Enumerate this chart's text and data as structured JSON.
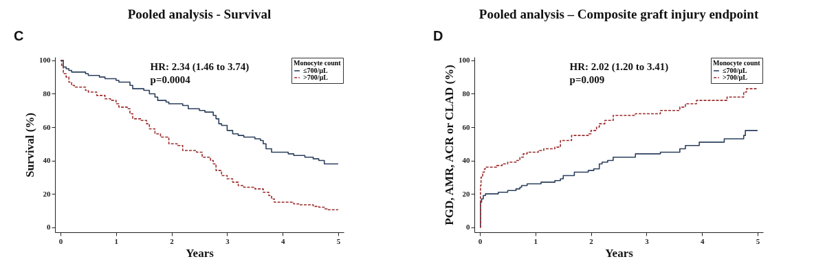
{
  "chart_data": [
    {
      "type": "step",
      "title": "Pooled analysis - Survival",
      "xlabel": "Years",
      "ylabel": "Survival (%)",
      "legend_title": "Monocyte count",
      "legend": "top right",
      "grid": false,
      "annotations": [
        "C",
        "HR: 2.34 (1.46 to 3.74)",
        "p=0.0004"
      ],
      "xlim": [
        -0.1,
        5.1
      ],
      "xticks": [
        0,
        1,
        2,
        3,
        4,
        5
      ],
      "ylim": [
        -3,
        102
      ],
      "yticks": [
        0,
        20,
        40,
        60,
        80,
        100
      ],
      "series": [
        {
          "name": "≤700/µL",
          "color": "#2b3f5c",
          "line_style": "solid",
          "x": [
            0,
            0.05,
            0.1,
            0.15,
            0.2,
            0.45,
            0.5,
            0.7,
            0.8,
            1.0,
            1.05,
            1.25,
            1.3,
            1.5,
            1.6,
            1.7,
            1.75,
            1.9,
            1.95,
            2.2,
            2.3,
            2.5,
            2.6,
            2.75,
            2.8,
            2.85,
            2.9,
            3.0,
            3.1,
            3.2,
            3.3,
            3.5,
            3.6,
            3.65,
            3.7,
            3.8,
            4.1,
            4.2,
            4.4,
            4.55,
            4.65,
            4.75,
            5.0
          ],
          "values": [
            100,
            96,
            95,
            94,
            93,
            92,
            91,
            90,
            89,
            88,
            87,
            85,
            83,
            82,
            80,
            78,
            76,
            75,
            74,
            73,
            71,
            70,
            69,
            67,
            65,
            62,
            61,
            58,
            56,
            55,
            54,
            53,
            52,
            50,
            47,
            45,
            44,
            43,
            42,
            41,
            40,
            38,
            38
          ]
        },
        {
          "name": ">700/µL",
          "color": "#9b2a2a",
          "line_style": "dashed",
          "x": [
            0,
            0.02,
            0.05,
            0.1,
            0.15,
            0.2,
            0.25,
            0.45,
            0.5,
            0.65,
            0.8,
            0.9,
            1.0,
            1.05,
            1.2,
            1.25,
            1.3,
            1.45,
            1.55,
            1.6,
            1.7,
            1.8,
            1.95,
            2.1,
            2.2,
            2.45,
            2.55,
            2.7,
            2.75,
            2.8,
            2.9,
            3.0,
            3.1,
            3.2,
            3.3,
            3.5,
            3.65,
            3.75,
            3.8,
            3.85,
            4.2,
            4.3,
            4.55,
            4.65,
            4.75,
            4.8,
            5.0
          ],
          "values": [
            100,
            97,
            92,
            90,
            87,
            85,
            84,
            82,
            81,
            79,
            77,
            76,
            74,
            72,
            71,
            68,
            65,
            64,
            62,
            59,
            56,
            54,
            50,
            49,
            46,
            45,
            42,
            40,
            38,
            34,
            31,
            29,
            27,
            25,
            24,
            23,
            21,
            19,
            17,
            15,
            14,
            13.5,
            12.5,
            12,
            11,
            10.5,
            10.5
          ]
        }
      ]
    },
    {
      "type": "step",
      "title": "Pooled analysis – Composite graft injury endpoint",
      "xlabel": "Years",
      "ylabel": "PGD, AMR, ACR or CLAD (%)",
      "legend_title": "Monocyte count",
      "legend": "top right",
      "grid": false,
      "annotations": [
        "D",
        "HR: 2.02 (1.20 to 3.41)",
        "p=0.009"
      ],
      "xlim": [
        -0.1,
        5.1
      ],
      "xticks": [
        0,
        1,
        2,
        3,
        4,
        5
      ],
      "ylim": [
        -3,
        102
      ],
      "yticks": [
        0,
        20,
        40,
        60,
        80,
        100
      ],
      "series": [
        {
          "name": "≤700/µL",
          "color": "#2b3f5c",
          "line_style": "solid",
          "x": [
            0,
            0.01,
            0.03,
            0.06,
            0.1,
            0.3,
            0.33,
            0.5,
            0.65,
            0.72,
            0.75,
            0.85,
            1.1,
            1.35,
            1.45,
            1.5,
            1.7,
            1.95,
            2.05,
            2.15,
            2.2,
            2.3,
            2.4,
            2.8,
            3.25,
            3.6,
            3.7,
            3.95,
            4.4,
            4.75,
            4.78,
            5.0
          ],
          "values": [
            0,
            15,
            17,
            19,
            20,
            20,
            21,
            22,
            23,
            24,
            25,
            26,
            27,
            28,
            29,
            31,
            33,
            34,
            35,
            38,
            39,
            40,
            42,
            44,
            45,
            47,
            49,
            51,
            53,
            55,
            58,
            58
          ]
        },
        {
          "name": ">700/µL",
          "color": "#9b2a2a",
          "line_style": "dashed",
          "x": [
            0,
            0.01,
            0.02,
            0.05,
            0.08,
            0.1,
            0.3,
            0.4,
            0.5,
            0.65,
            0.72,
            0.78,
            0.85,
            1.05,
            1.15,
            1.35,
            1.45,
            1.65,
            1.95,
            2.0,
            2.1,
            2.15,
            2.25,
            2.4,
            2.8,
            3.25,
            3.6,
            3.7,
            3.9,
            4.45,
            4.75,
            4.8,
            5.0
          ],
          "values": [
            0,
            25,
            30,
            33,
            35,
            36,
            37,
            38,
            39,
            40,
            42,
            44,
            45,
            46,
            47,
            48,
            52,
            55,
            56,
            58,
            60,
            62,
            64,
            67,
            68,
            70,
            72,
            74,
            76,
            78,
            81,
            83,
            83
          ]
        }
      ]
    }
  ]
}
